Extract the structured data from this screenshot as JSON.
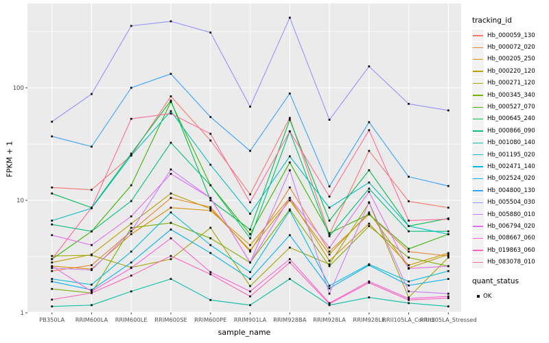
{
  "chart_data": {
    "type": "line",
    "title": "",
    "xlabel": "sample_name",
    "ylabel": "FPKM + 1",
    "y_scale": "log10",
    "y_ticks": [
      1,
      10,
      100
    ],
    "y_minor": [
      3.162,
      31.62,
      316.2
    ],
    "ylim": [
      1,
      560
    ],
    "grid": true,
    "legend_position": "right",
    "panel_bg": "#EBEBEB",
    "grid_color": "#FFFFFF",
    "point_color": "#111111",
    "tick_label_color": "#4D4D4D",
    "categories": [
      "PB350LA",
      "RRIM600LA",
      "RRIM600LE",
      "RRIM600SE",
      "RRIM600PE",
      "RRIM901LA",
      "RRIM928BA",
      "RRIM928LA",
      "RRIM928LE",
      "RRII105LA_Control",
      "RRII105LA_Stressed"
    ],
    "series": [
      {
        "name": "Hb_000059_130",
        "color": "#F8766D",
        "values": [
          13,
          12.4,
          25,
          84,
          34,
          11.3,
          54,
          5.0,
          27.5,
          9.8,
          8.6
        ]
      },
      {
        "name": "Hb_000072_020",
        "color": "#EA8331",
        "values": [
          2.35,
          2.65,
          5.3,
          10.5,
          8.7,
          3.5,
          13,
          3.5,
          7.5,
          3.5,
          3.2
        ]
      },
      {
        "name": "Hb_000205_250",
        "color": "#D89000",
        "values": [
          2.6,
          2.45,
          5.0,
          8.6,
          8.1,
          4.0,
          10.5,
          2.9,
          6.2,
          2.65,
          3.4
        ]
      },
      {
        "name": "Hb_000220_120",
        "color": "#C09B00",
        "values": [
          2.8,
          3.3,
          6.2,
          11.5,
          8.4,
          3.6,
          10.0,
          3.3,
          7.8,
          2.5,
          3.3
        ]
      },
      {
        "name": "Hb_000271_120",
        "color": "#A3A500",
        "values": [
          3.2,
          3.25,
          2.53,
          3.0,
          5.7,
          1.73,
          3.8,
          2.7,
          9.5,
          1.37,
          3.1
        ]
      },
      {
        "name": "Hb_000345_340",
        "color": "#7CAE00",
        "values": [
          1.63,
          1.5,
          5.7,
          6.3,
          4.6,
          2.8,
          8.3,
          2.6,
          5.9,
          3.1,
          2.6
        ]
      },
      {
        "name": "Hb_000527_070",
        "color": "#39B600",
        "values": [
          3.0,
          5.3,
          13.6,
          75,
          13.6,
          5.0,
          21.7,
          5.1,
          7.5,
          3.7,
          5.0
        ]
      },
      {
        "name": "Hb_000645_240",
        "color": "#00BB4E",
        "values": [
          11.5,
          8.6,
          26,
          77,
          10.0,
          5.5,
          52,
          6.6,
          18.5,
          5.9,
          6.9
        ]
      },
      {
        "name": "Hb_000866_090",
        "color": "#00BF7D",
        "values": [
          6.1,
          5.3,
          9.85,
          32.5,
          13.6,
          4.6,
          41,
          4.8,
          12.7,
          5.3,
          5.3
        ]
      },
      {
        "name": "Hb_001080_140",
        "color": "#00C1A3",
        "values": [
          1.14,
          1.17,
          1.55,
          2.0,
          1.3,
          1.17,
          2.0,
          1.17,
          1.37,
          1.22,
          1.14
        ]
      },
      {
        "name": "Hb_001195_020",
        "color": "#00BFC4",
        "values": [
          6.6,
          8.5,
          25,
          62,
          20.7,
          7.6,
          24.6,
          8.6,
          14.4,
          5.9,
          5.0
        ]
      },
      {
        "name": "Hb_002471_140",
        "color": "#00BAE0",
        "values": [
          2.0,
          1.78,
          3.5,
          7.8,
          4.0,
          2.3,
          8.1,
          1.74,
          2.7,
          1.9,
          2.35
        ]
      },
      {
        "name": "Hb_002524_020",
        "color": "#00B0F6",
        "values": [
          1.9,
          1.6,
          2.8,
          5.5,
          3.4,
          2.0,
          4.9,
          1.65,
          2.65,
          1.75,
          2.0
        ]
      },
      {
        "name": "Hb_004800_130",
        "color": "#35A2FF",
        "values": [
          37,
          30,
          100,
          133,
          55,
          27.5,
          89,
          13.3,
          49.5,
          16.2,
          13.4
        ]
      },
      {
        "name": "Hb_005504_030",
        "color": "#9590FF",
        "values": [
          50,
          88,
          355,
          390,
          310,
          68,
          420,
          52,
          155,
          72,
          63
        ]
      },
      {
        "name": "Hb_005880_010",
        "color": "#C77CFF",
        "values": [
          2.5,
          2.4,
          5.3,
          18.8,
          10.5,
          2.8,
          18.5,
          1.48,
          9.6,
          1.55,
          1.48
        ]
      },
      {
        "name": "Hb_006794_020",
        "color": "#E76BF3",
        "values": [
          4.9,
          4.0,
          7.2,
          17.2,
          10.5,
          2.8,
          10.5,
          3.8,
          11.9,
          2.47,
          2.6
        ]
      },
      {
        "name": "Hb_008667_060",
        "color": "#FA62DB",
        "values": [
          2.6,
          1.55,
          2.5,
          4.6,
          2.3,
          1.55,
          3.0,
          1.22,
          1.9,
          1.34,
          1.4
        ]
      },
      {
        "name": "Hb_019863_060",
        "color": "#FF62BC",
        "values": [
          1.31,
          1.5,
          2.14,
          3.2,
          2.2,
          1.4,
          2.8,
          1.2,
          1.85,
          1.3,
          1.35
        ]
      },
      {
        "name": "Hb_083078_010",
        "color": "#FF6A98",
        "values": [
          3.0,
          8.6,
          53,
          59,
          39,
          9.6,
          41,
          10.8,
          42,
          6.6,
          6.8
        ]
      }
    ],
    "legend": {
      "title": "tracking_id"
    },
    "legend2": {
      "title": "quant_status",
      "items": [
        "OK"
      ]
    }
  }
}
